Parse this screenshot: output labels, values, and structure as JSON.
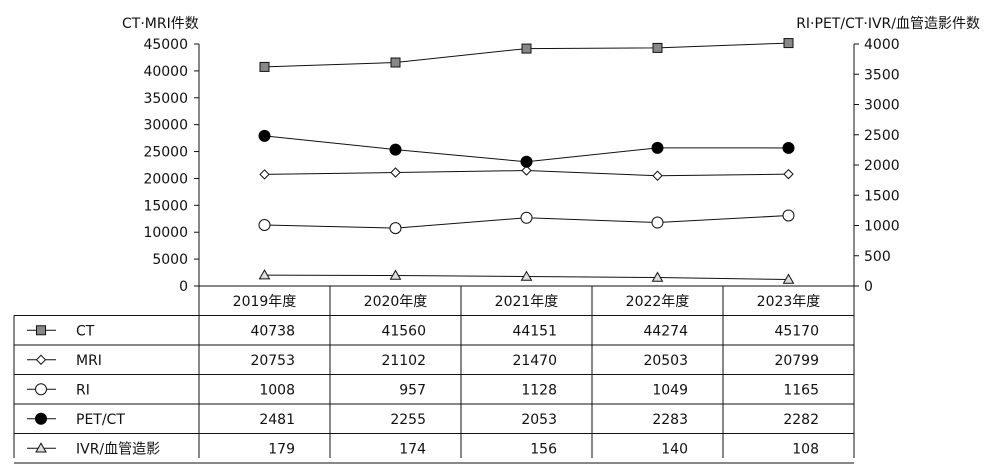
{
  "chart_data": {
    "type": "line",
    "y_left_label": "CT·MRI件数",
    "y_right_label": "RI·PET/CT·IVR/血管造影件数",
    "y_left_ticks": [
      "45000",
      "40000",
      "35000",
      "30000",
      "25000",
      "20000",
      "15000",
      "10000",
      "5000",
      "0"
    ],
    "y_right_ticks": [
      "4000",
      "3500",
      "3000",
      "2500",
      "2000",
      "1500",
      "1000",
      "500",
      "0"
    ],
    "y_left_range": [
      0,
      45000
    ],
    "y_right_range": [
      0,
      4000
    ],
    "categories": [
      "2019年度",
      "2020年度",
      "2021年度",
      "2022年度",
      "2023年度"
    ],
    "series": [
      {
        "name": "CT",
        "axis": "left",
        "marker": "square",
        "values": [
          40738,
          41560,
          44151,
          44274,
          45170
        ]
      },
      {
        "name": "MRI",
        "axis": "left",
        "marker": "diamond",
        "values": [
          20753,
          21102,
          21470,
          20503,
          20799
        ]
      },
      {
        "name": "RI",
        "axis": "right",
        "marker": "circle-open",
        "values": [
          1008,
          957,
          1128,
          1049,
          1165
        ]
      },
      {
        "name": "PET/CT",
        "axis": "right",
        "marker": "circle-filled",
        "values": [
          2481,
          2255,
          2053,
          2283,
          2282
        ]
      },
      {
        "name": "IVR/血管造影",
        "axis": "right",
        "marker": "triangle",
        "values": [
          179,
          174,
          156,
          140,
          108
        ]
      }
    ],
    "table_values": [
      [
        "40738",
        "41560",
        "44151",
        "44274",
        "45170"
      ],
      [
        "20753",
        "21102",
        "21470",
        "20503",
        "20799"
      ],
      [
        "1008",
        "957",
        "1128",
        "1049",
        "1165"
      ],
      [
        "2481",
        "2255",
        "2053",
        "2283",
        "2282"
      ],
      [
        "179",
        "174",
        "156",
        "140",
        "108"
      ]
    ],
    "grid": false,
    "legend_position": "table-left"
  }
}
